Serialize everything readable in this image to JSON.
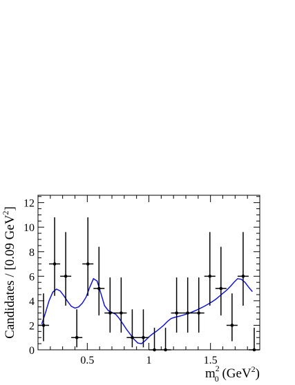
{
  "chart_data": {
    "type": "scatter",
    "ylabel": "Candidates / [0.09 GeV²]",
    "ylabel_parts": {
      "main": "Candidates / [0.09 GeV",
      "sup": "2",
      "close": "]"
    },
    "xlabel_parts": {
      "m": "m",
      "sup": "2",
      "sub": "0",
      "unit": " (GeV",
      "unit_sup": "2",
      "unit_close": ")"
    },
    "xlim": [
      0.1,
      1.9
    ],
    "ylim": [
      0,
      12.6
    ],
    "x_ticks": [
      {
        "value": 0.5,
        "label": "0.5"
      },
      {
        "value": 1.0,
        "label": "1"
      },
      {
        "value": 1.5,
        "label": "1.5"
      }
    ],
    "y_ticks": [
      {
        "value": 0,
        "label": "0"
      },
      {
        "value": 2,
        "label": "2"
      },
      {
        "value": 4,
        "label": "4"
      },
      {
        "value": 6,
        "label": "6"
      },
      {
        "value": 8,
        "label": "8"
      },
      {
        "value": 10,
        "label": "10"
      },
      {
        "value": 12,
        "label": "12"
      }
    ],
    "bin_width": 0.09,
    "series": [
      {
        "kind": "data",
        "color": "#000000",
        "points": [
          {
            "x": 0.145,
            "y": 2,
            "err_lo": 1.3,
            "err_hi": 2.6
          },
          {
            "x": 0.235,
            "y": 7,
            "err_lo": 2.6,
            "err_hi": 3.8
          },
          {
            "x": 0.325,
            "y": 6,
            "err_lo": 2.4,
            "err_hi": 3.6
          },
          {
            "x": 0.415,
            "y": 1,
            "err_lo": 0.8,
            "err_hi": 2.3
          },
          {
            "x": 0.505,
            "y": 7,
            "err_lo": 2.6,
            "err_hi": 3.8
          },
          {
            "x": 0.595,
            "y": 5,
            "err_lo": 2.2,
            "err_hi": 3.4
          },
          {
            "x": 0.685,
            "y": 3,
            "err_lo": 1.6,
            "err_hi": 2.9
          },
          {
            "x": 0.775,
            "y": 3,
            "err_lo": 1.6,
            "err_hi": 2.9
          },
          {
            "x": 0.865,
            "y": 1,
            "err_lo": 0.8,
            "err_hi": 2.3
          },
          {
            "x": 0.955,
            "y": 1,
            "err_lo": 0.8,
            "err_hi": 2.3
          },
          {
            "x": 1.045,
            "y": 0,
            "err_lo": 0,
            "err_hi": 1.8
          },
          {
            "x": 1.135,
            "y": 0,
            "err_lo": 0,
            "err_hi": 1.8
          },
          {
            "x": 1.225,
            "y": 3,
            "err_lo": 1.6,
            "err_hi": 2.9
          },
          {
            "x": 1.315,
            "y": 3,
            "err_lo": 1.6,
            "err_hi": 2.9
          },
          {
            "x": 1.405,
            "y": 3,
            "err_lo": 1.6,
            "err_hi": 2.9
          },
          {
            "x": 1.495,
            "y": 6,
            "err_lo": 2.4,
            "err_hi": 3.6
          },
          {
            "x": 1.585,
            "y": 5,
            "err_lo": 2.2,
            "err_hi": 3.4
          },
          {
            "x": 1.675,
            "y": 2,
            "err_lo": 1.3,
            "err_hi": 2.6
          },
          {
            "x": 1.765,
            "y": 6,
            "err_lo": 2.4,
            "err_hi": 3.6
          },
          {
            "x": 1.855,
            "y": 0,
            "err_lo": 0,
            "err_hi": 1.8
          }
        ]
      },
      {
        "kind": "fit",
        "color": "#1414d6",
        "x": [
          0.13,
          0.16,
          0.19,
          0.22,
          0.25,
          0.28,
          0.31,
          0.34,
          0.37,
          0.4,
          0.43,
          0.46,
          0.49,
          0.52,
          0.55,
          0.58,
          0.61,
          0.64,
          0.67,
          0.7,
          0.73,
          0.76,
          0.79,
          0.82,
          0.85,
          0.88,
          0.91,
          0.94,
          0.97,
          1.0,
          1.03,
          1.06,
          1.09,
          1.12,
          1.15,
          1.18,
          1.21,
          1.24,
          1.27,
          1.3,
          1.33,
          1.36,
          1.39,
          1.42,
          1.45,
          1.48,
          1.51,
          1.54,
          1.57,
          1.6,
          1.63,
          1.66,
          1.69,
          1.72,
          1.75,
          1.78,
          1.81,
          1.84
        ],
        "y": [
          2.1,
          3.0,
          4.0,
          4.7,
          4.95,
          4.8,
          4.4,
          3.95,
          3.55,
          3.4,
          3.5,
          3.8,
          4.3,
          5.1,
          5.8,
          5.6,
          4.6,
          3.6,
          3.2,
          3.05,
          2.9,
          2.55,
          2.1,
          1.65,
          1.25,
          0.85,
          0.55,
          0.5,
          0.75,
          1.05,
          1.3,
          1.5,
          1.75,
          2.0,
          2.3,
          2.55,
          2.65,
          2.72,
          2.8,
          2.9,
          3.0,
          3.12,
          3.25,
          3.4,
          3.55,
          3.72,
          3.9,
          4.1,
          4.35,
          4.6,
          4.85,
          5.15,
          5.5,
          5.8,
          5.75,
          5.5,
          5.1,
          4.75
        ]
      }
    ]
  }
}
